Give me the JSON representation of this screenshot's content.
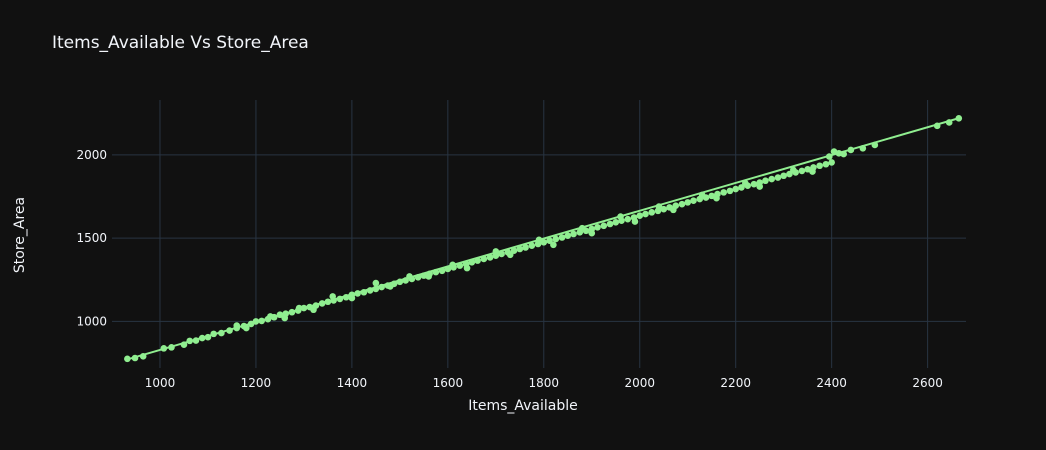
{
  "chart_data": {
    "type": "scatter",
    "title": "Items_Available Vs Store_Area",
    "xlabel": "Items_Available",
    "ylabel": "Store_Area",
    "xlim": [
      900,
      2680
    ],
    "ylim": [
      720,
      2330
    ],
    "xticks": [
      1000,
      1200,
      1400,
      1600,
      1800,
      2000,
      2200,
      2400,
      2600
    ],
    "yticks": [
      1000,
      1500,
      2000
    ],
    "grid": true,
    "marker_color": "#90ee90",
    "background_color": "#111111",
    "grid_color": "#283442",
    "series": [
      {
        "name": "Store_Area",
        "mode": "markers",
        "points": [
          [
            932,
            775
          ],
          [
            948,
            780
          ],
          [
            965,
            790
          ],
          [
            1008,
            838
          ],
          [
            1024,
            844
          ],
          [
            1050,
            860
          ],
          [
            1062,
            883
          ],
          [
            1075,
            885
          ],
          [
            1088,
            900
          ],
          [
            1100,
            905
          ],
          [
            1112,
            925
          ],
          [
            1128,
            930
          ],
          [
            1145,
            945
          ],
          [
            1160,
            960
          ],
          [
            1175,
            972
          ],
          [
            1190,
            985
          ],
          [
            1200,
            1000
          ],
          [
            1212,
            1003
          ],
          [
            1225,
            1013
          ],
          [
            1238,
            1025
          ],
          [
            1250,
            1040
          ],
          [
            1262,
            1046
          ],
          [
            1275,
            1055
          ],
          [
            1288,
            1065
          ],
          [
            1300,
            1080
          ],
          [
            1312,
            1086
          ],
          [
            1325,
            1095
          ],
          [
            1338,
            1108
          ],
          [
            1350,
            1118
          ],
          [
            1362,
            1126
          ],
          [
            1375,
            1135
          ],
          [
            1388,
            1145
          ],
          [
            1400,
            1160
          ],
          [
            1412,
            1168
          ],
          [
            1425,
            1175
          ],
          [
            1438,
            1186
          ],
          [
            1450,
            1195
          ],
          [
            1462,
            1206
          ],
          [
            1475,
            1215
          ],
          [
            1488,
            1226
          ],
          [
            1500,
            1238
          ],
          [
            1512,
            1246
          ],
          [
            1525,
            1255
          ],
          [
            1538,
            1265
          ],
          [
            1550,
            1275
          ],
          [
            1562,
            1286
          ],
          [
            1575,
            1296
          ],
          [
            1588,
            1304
          ],
          [
            1600,
            1315
          ],
          [
            1612,
            1325
          ],
          [
            1625,
            1335
          ],
          [
            1638,
            1344
          ],
          [
            1650,
            1355
          ],
          [
            1662,
            1365
          ],
          [
            1675,
            1375
          ],
          [
            1688,
            1384
          ],
          [
            1700,
            1395
          ],
          [
            1712,
            1405
          ],
          [
            1725,
            1415
          ],
          [
            1738,
            1425
          ],
          [
            1750,
            1435
          ],
          [
            1762,
            1444
          ],
          [
            1775,
            1455
          ],
          [
            1788,
            1465
          ],
          [
            1800,
            1475
          ],
          [
            1812,
            1485
          ],
          [
            1825,
            1495
          ],
          [
            1838,
            1504
          ],
          [
            1850,
            1515
          ],
          [
            1862,
            1525
          ],
          [
            1875,
            1535
          ],
          [
            1888,
            1544
          ],
          [
            1900,
            1555
          ],
          [
            1912,
            1565
          ],
          [
            1925,
            1574
          ],
          [
            1938,
            1585
          ],
          [
            1950,
            1595
          ],
          [
            1962,
            1605
          ],
          [
            1975,
            1614
          ],
          [
            1988,
            1624
          ],
          [
            2000,
            1635
          ],
          [
            2012,
            1645
          ],
          [
            2025,
            1655
          ],
          [
            2038,
            1664
          ],
          [
            2050,
            1674
          ],
          [
            2062,
            1685
          ],
          [
            2075,
            1695
          ],
          [
            2088,
            1704
          ],
          [
            2100,
            1715
          ],
          [
            2112,
            1725
          ],
          [
            2125,
            1735
          ],
          [
            2138,
            1744
          ],
          [
            2150,
            1754
          ],
          [
            2162,
            1765
          ],
          [
            2175,
            1775
          ],
          [
            2188,
            1784
          ],
          [
            2200,
            1795
          ],
          [
            2212,
            1805
          ],
          [
            2225,
            1815
          ],
          [
            2238,
            1824
          ],
          [
            2250,
            1834
          ],
          [
            2262,
            1845
          ],
          [
            2275,
            1855
          ],
          [
            2288,
            1864
          ],
          [
            2300,
            1875
          ],
          [
            2312,
            1885
          ],
          [
            2325,
            1895
          ],
          [
            2338,
            1904
          ],
          [
            2350,
            1914
          ],
          [
            2362,
            1925
          ],
          [
            2375,
            1935
          ],
          [
            2388,
            1944
          ],
          [
            2400,
            1955
          ],
          [
            2395,
            1990
          ],
          [
            2405,
            2020
          ],
          [
            2415,
            2010
          ],
          [
            2425,
            2005
          ],
          [
            2440,
            2030
          ],
          [
            2465,
            2040
          ],
          [
            2490,
            2060
          ],
          [
            2620,
            2175
          ],
          [
            2645,
            2195
          ],
          [
            2665,
            2220
          ],
          [
            1450,
            1230
          ],
          [
            1480,
            1210
          ],
          [
            1520,
            1270
          ],
          [
            1560,
            1270
          ],
          [
            1610,
            1340
          ],
          [
            1640,
            1320
          ],
          [
            1700,
            1420
          ],
          [
            1730,
            1400
          ],
          [
            1790,
            1490
          ],
          [
            1820,
            1460
          ],
          [
            1880,
            1560
          ],
          [
            1900,
            1530
          ],
          [
            1960,
            1630
          ],
          [
            1990,
            1600
          ],
          [
            2040,
            1690
          ],
          [
            2070,
            1670
          ],
          [
            2130,
            1760
          ],
          [
            2160,
            1740
          ],
          [
            2220,
            1830
          ],
          [
            2250,
            1810
          ],
          [
            2320,
            1910
          ],
          [
            2360,
            1900
          ],
          [
            1360,
            1150
          ],
          [
            1400,
            1140
          ],
          [
            1290,
            1080
          ],
          [
            1320,
            1070
          ],
          [
            1230,
            1030
          ],
          [
            1260,
            1020
          ],
          [
            1160,
            975
          ],
          [
            1180,
            960
          ]
        ]
      },
      {
        "name": "Trendline",
        "mode": "lines",
        "points": [
          [
            930,
            770
          ],
          [
            2670,
            2225
          ]
        ]
      }
    ]
  }
}
